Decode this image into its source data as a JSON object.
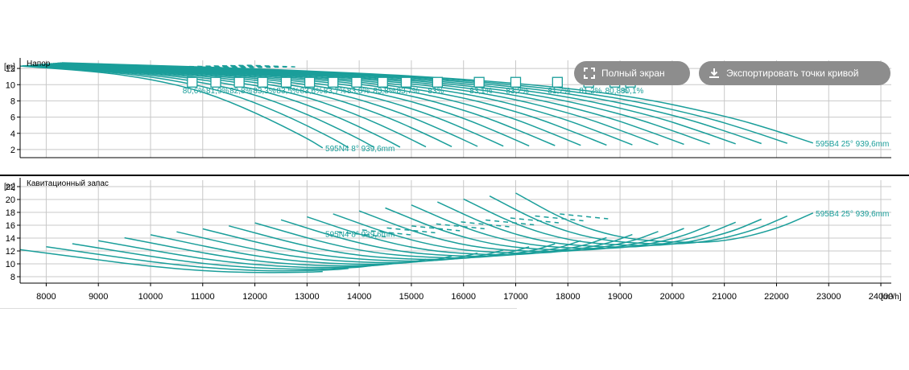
{
  "toolbar": {
    "fullscreen_label": "Полный экран",
    "export_label": "Экспортировать точки кривой",
    "fullscreen_icon": "fullscreen-icon",
    "export_icon": "download-icon"
  },
  "colors": {
    "curve": "#1a9e9a",
    "axis": "#000000",
    "grid": "#c8c8c8",
    "button": "#8d8d8d"
  },
  "chart_data": [
    {
      "type": "line",
      "title": "Напор",
      "ylabel": "[m]",
      "ylim": [
        1,
        13
      ],
      "yticks": [
        2,
        4,
        6,
        8,
        10,
        12
      ],
      "xlim": [
        7500,
        24200
      ],
      "grid": true,
      "curve_count": 20,
      "first_curve": {
        "x": [
          7500,
          9000,
          10000,
          11000,
          12000,
          13000,
          13300
        ],
        "y": [
          12.3,
          11.6,
          10.7,
          9.2,
          6.6,
          3.4,
          2.2
        ]
      },
      "last_curve": {
        "x": [
          8300,
          12000,
          16000,
          19000,
          21000,
          22000,
          22700
        ],
        "y": [
          12.7,
          12.0,
          10.8,
          8.9,
          6.2,
          4.3,
          2.8
        ]
      },
      "efficiency_label": "Эфф",
      "efficiency_marks": [
        {
          "x": 10800,
          "label": "80,6%"
        },
        {
          "x": 11250,
          "label": "81,9%"
        },
        {
          "x": 11700,
          "label": "82,8%"
        },
        {
          "x": 12150,
          "label": "83,3%"
        },
        {
          "x": 12600,
          "label": "83,5%"
        },
        {
          "x": 13050,
          "label": "83,6%"
        },
        {
          "x": 13500,
          "label": "83,7%"
        },
        {
          "x": 13950,
          "label": "83,8%"
        },
        {
          "x": 14450,
          "label": "83,8%"
        },
        {
          "x": 14900,
          "label": "83,7%"
        },
        {
          "x": 15500,
          "label": "83%"
        },
        {
          "x": 16300,
          "label": "83,1%"
        },
        {
          "x": 17000,
          "label": "83,2%"
        },
        {
          "x": 17800,
          "label": "81,7%"
        },
        {
          "x": 18400,
          "label": "81,2%"
        },
        {
          "x": 18900,
          "label": "80,8%"
        },
        {
          "x": 19200,
          "label": "80,1%"
        }
      ],
      "annotations": [
        {
          "text": "595N4 8° 939,6mm",
          "x": 13350,
          "y": 2.2
        },
        {
          "text": "595B4 25° 939,6mm",
          "x": 22750,
          "y": 2.8
        }
      ]
    },
    {
      "type": "line",
      "title": "Кавитационный запас",
      "ylabel": "[m]",
      "ylim": [
        7,
        23
      ],
      "yticks": [
        8,
        10,
        12,
        14,
        16,
        18,
        20,
        22
      ],
      "xlim": [
        7500,
        24200
      ],
      "xticks": [
        8000,
        9000,
        10000,
        11000,
        12000,
        13000,
        14000,
        15000,
        16000,
        17000,
        18000,
        19000,
        20000,
        21000,
        22000,
        23000,
        24000
      ],
      "xlabel": "[m³/h]",
      "grid": true,
      "curve_count": 20,
      "first_curve": {
        "x": [
          7500,
          9000,
          10000,
          11000,
          12000,
          13000,
          13300
        ],
        "y": [
          12.2,
          10.6,
          9.6,
          8.9,
          8.6,
          8.7,
          8.8
        ]
      },
      "last_curve": {
        "x": [
          17000,
          18000,
          19000,
          20000,
          21000,
          22000,
          22700
        ],
        "y": [
          21.0,
          16.5,
          14.0,
          13.3,
          13.4,
          15.4,
          17.9
        ]
      },
      "annotations": [
        {
          "text": "595N4 8° 939,6mm",
          "x": 13350,
          "y": 14.7
        },
        {
          "text": "595B4 25° 939,6mm",
          "x": 22750,
          "y": 17.9
        }
      ]
    }
  ]
}
